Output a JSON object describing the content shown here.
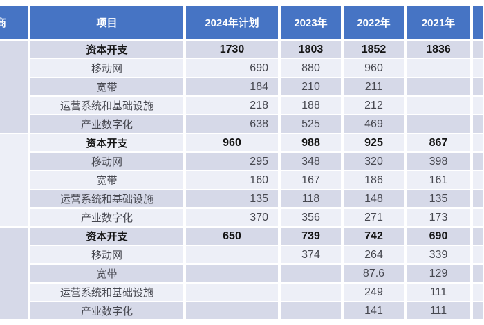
{
  "colors": {
    "header_bg": "#4674c4",
    "stripe_dark": "#d6d9e8",
    "stripe_light": "#edeff7",
    "text_bold": "#141414",
    "text_regular": "#46474f",
    "header_text": "#ffffff"
  },
  "header": {
    "operator": "商",
    "project": "项目",
    "years": [
      "2024年计划",
      "2023年",
      "2022年",
      "2021年"
    ]
  },
  "sections": [
    {
      "rows": [
        {
          "label": "资本开支",
          "bold": true,
          "values": [
            "1730",
            "1803",
            "1852",
            "1836"
          ]
        },
        {
          "label": "移动网",
          "bold": false,
          "values": [
            "690",
            "880",
            "960",
            ""
          ]
        },
        {
          "label": "宽带",
          "bold": false,
          "values": [
            "184",
            "210",
            "211",
            ""
          ]
        },
        {
          "label": "运营系统和基础设施",
          "bold": false,
          "values": [
            "218",
            "188",
            "212",
            ""
          ]
        },
        {
          "label": "产业数字化",
          "bold": false,
          "values": [
            "638",
            "525",
            "469",
            ""
          ]
        }
      ]
    },
    {
      "rows": [
        {
          "label": "资本开支",
          "bold": true,
          "values": [
            "960",
            "988",
            "925",
            "867"
          ]
        },
        {
          "label": "移动网",
          "bold": false,
          "values": [
            "295",
            "348",
            "320",
            "398"
          ]
        },
        {
          "label": "宽带",
          "bold": false,
          "values": [
            "160",
            "167",
            "186",
            "161"
          ]
        },
        {
          "label": "运营系统和基础设施",
          "bold": false,
          "values": [
            "135",
            "118",
            "148",
            "135"
          ]
        },
        {
          "label": "产业数字化",
          "bold": false,
          "values": [
            "370",
            "356",
            "271",
            "173"
          ]
        }
      ]
    },
    {
      "rows": [
        {
          "label": "资本开支",
          "bold": true,
          "values": [
            "650",
            "739",
            "742",
            "690"
          ]
        },
        {
          "label": "移动网",
          "bold": false,
          "values": [
            "",
            "374",
            "264",
            "339"
          ]
        },
        {
          "label": "宽带",
          "bold": false,
          "values": [
            "",
            "",
            "87.6",
            "129"
          ]
        },
        {
          "label": "运营系统和基础设施",
          "bold": false,
          "values": [
            "",
            "",
            "249",
            "111"
          ]
        },
        {
          "label": "产业数字化",
          "bold": false,
          "values": [
            "",
            "",
            "141",
            "111"
          ]
        }
      ]
    }
  ]
}
